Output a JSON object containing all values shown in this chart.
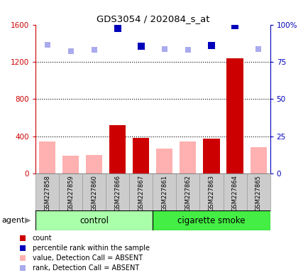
{
  "title": "GDS3054 / 202084_s_at",
  "samples": [
    "GSM227858",
    "GSM227859",
    "GSM227860",
    "GSM227866",
    "GSM227867",
    "GSM227861",
    "GSM227862",
    "GSM227863",
    "GSM227864",
    "GSM227865"
  ],
  "count_values": [
    0,
    0,
    0,
    520,
    380,
    0,
    0,
    370,
    1240,
    0
  ],
  "absent_value": [
    340,
    190,
    200,
    0,
    0,
    270,
    340,
    0,
    0,
    280
  ],
  "rank_absent": [
    1380,
    1310,
    1330,
    0,
    0,
    1340,
    1330,
    0,
    0,
    1340
  ],
  "percentile_rank": [
    0,
    0,
    0,
    1555,
    1370,
    0,
    0,
    1375,
    1590,
    0
  ],
  "is_absent": [
    true,
    true,
    true,
    false,
    false,
    true,
    true,
    false,
    false,
    true
  ],
  "ylim_left": [
    0,
    1600
  ],
  "yticks_left": [
    0,
    400,
    800,
    1200,
    1600
  ],
  "yticks_right": [
    0,
    25,
    50,
    75,
    100
  ],
  "bar_color_count": "#CC0000",
  "bar_color_absent_value": "#FFB0B0",
  "marker_color_rank_absent": "#AAAAEE",
  "marker_color_percentile": "#0000BB",
  "tick_color_left": "#CC0000",
  "tick_color_right": "#0000BB",
  "bg_color": "#CCCCCC",
  "plot_bg": "#FFFFFF",
  "control_color": "#AAFFAA",
  "smoke_color": "#44EE44",
  "agent_label": "agent",
  "group_label_control": "control",
  "group_label_smoke": "cigarette smoke",
  "legend_items": [
    {
      "color": "#CC0000",
      "label": "count"
    },
    {
      "color": "#0000BB",
      "label": "percentile rank within the sample"
    },
    {
      "color": "#FFB0B0",
      "label": "value, Detection Call = ABSENT"
    },
    {
      "color": "#AAAAEE",
      "label": "rank, Detection Call = ABSENT"
    }
  ]
}
